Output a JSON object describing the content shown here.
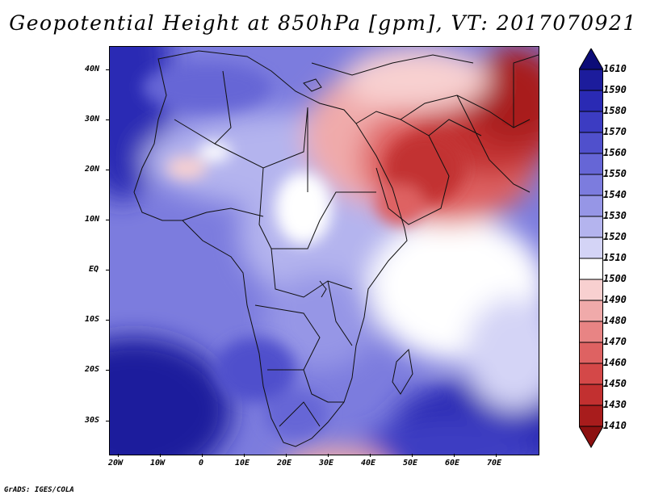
{
  "title": "Geopotential Height at 850hPa [gpm], VT: 2017070921",
  "credit": "GrADS: IGES/COLA",
  "lat_labels": [
    "40N",
    "30N",
    "20N",
    "10N",
    "EQ",
    "10S",
    "20S",
    "30S"
  ],
  "lon_labels": [
    "20W",
    "10W",
    "0",
    "10E",
    "20E",
    "30E",
    "40E",
    "50E",
    "60E",
    "70E"
  ],
  "colorbar": {
    "levels": [
      "1610",
      "1590",
      "1580",
      "1570",
      "1560",
      "1550",
      "1540",
      "1530",
      "1520",
      "1510",
      "1500",
      "1490",
      "1480",
      "1470",
      "1460",
      "1450",
      "1430",
      "1410"
    ],
    "colors": [
      "#0c0c78",
      "#1c1c9c",
      "#2a2ab4",
      "#3c3cc2",
      "#5050cc",
      "#6666d6",
      "#7c7cde",
      "#9696e6",
      "#b4b4ee",
      "#d4d4f6",
      "#ffffff",
      "#f8d0d0",
      "#f0aaaa",
      "#e88484",
      "#de6262",
      "#d44848",
      "#c23030",
      "#a81c1c",
      "#8c1010"
    ]
  },
  "colors": {
    "frame": "#000000",
    "border": "#101010"
  }
}
